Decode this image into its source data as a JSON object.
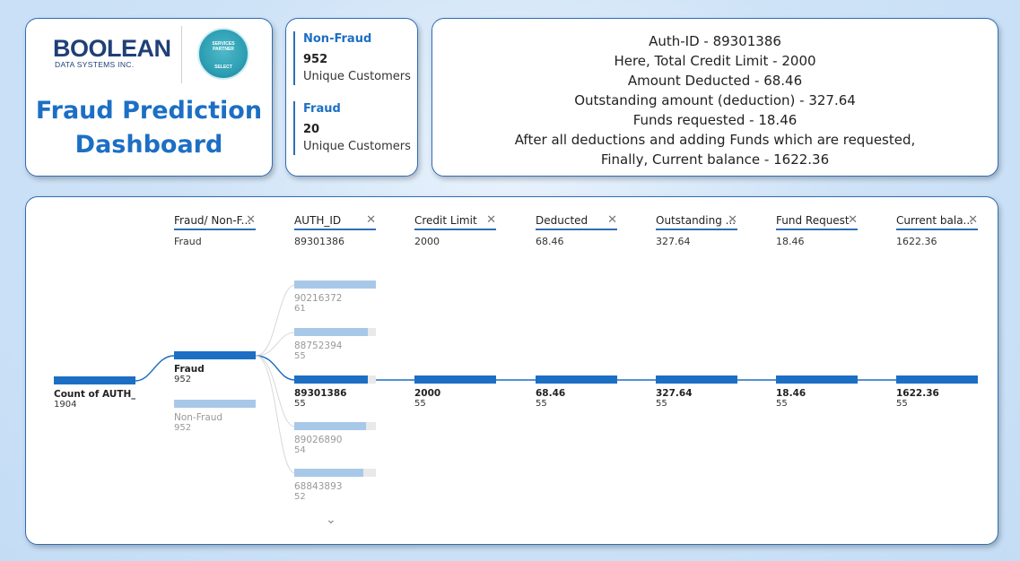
{
  "logo": {
    "main": "BOOLEAN",
    "sub": "DATA SYSTEMS INC.",
    "badge_lines": [
      "SERVICES",
      "PARTNER",
      "SELECT"
    ]
  },
  "dashboard_title_line1": "Fraud Prediction",
  "dashboard_title_line2": "Dashboard",
  "counts": [
    {
      "title": "Non-Fraud",
      "value": "952",
      "label": "Unique Customers"
    },
    {
      "title": "Fraud",
      "value": "20",
      "label": "Unique Customers"
    }
  ],
  "summary": [
    "Auth-ID - 89301386",
    "Here, Total Credit Limit - 2000",
    "Amount Deducted - 68.46",
    "Outstanding amount (deduction) - 327.64",
    "Funds requested - 18.46",
    "After all deductions and adding Funds which are requested,",
    "Finally, Current balance - 1622.36"
  ],
  "tree": {
    "close_glyph": "✕",
    "expand_glyph": "⌄",
    "levels": [
      {
        "name": "Fraud/ Non-F...",
        "value": "Fraud"
      },
      {
        "name": "AUTH_ID",
        "value": "89301386"
      },
      {
        "name": "Credit Limit",
        "value": "2000"
      },
      {
        "name": "Deducted",
        "value": "68.46"
      },
      {
        "name": "Outstanding ...",
        "value": "327.64"
      },
      {
        "name": "Fund Request",
        "value": "18.46"
      },
      {
        "name": "Current bala...",
        "value": "1622.36"
      }
    ],
    "root": {
      "label": "Count of AUTH_...",
      "count": "1904",
      "fill": 1.0
    },
    "fraud_nodes": [
      {
        "label": "Fraud",
        "count": "952",
        "fill": 1.0,
        "selected": true
      },
      {
        "label": "Non-Fraud",
        "count": "952",
        "fill": 1.0,
        "selected": false
      }
    ],
    "auth_nodes": [
      {
        "label": "90216372",
        "count": "61",
        "fill": 1.0,
        "selected": false
      },
      {
        "label": "88752394",
        "count": "55",
        "fill": 0.9,
        "selected": false
      },
      {
        "label": "89301386",
        "count": "55",
        "fill": 0.9,
        "selected": true
      },
      {
        "label": "89026890",
        "count": "54",
        "fill": 0.88,
        "selected": false
      },
      {
        "label": "68843893",
        "count": "52",
        "fill": 0.85,
        "selected": false
      }
    ],
    "chain_nodes": [
      {
        "label": "2000",
        "count": "55",
        "fill": 1.0
      },
      {
        "label": "68.46",
        "count": "55",
        "fill": 1.0
      },
      {
        "label": "327.64",
        "count": "55",
        "fill": 1.0
      },
      {
        "label": "18.46",
        "count": "55",
        "fill": 1.0
      },
      {
        "label": "1622.36",
        "count": "55",
        "fill": 1.0
      }
    ]
  }
}
